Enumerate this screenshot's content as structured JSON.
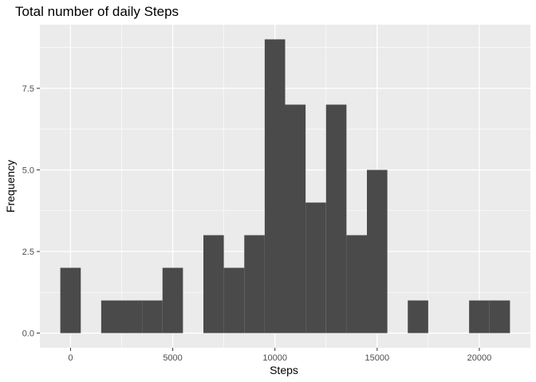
{
  "chart_data": {
    "type": "bar",
    "title": "Total number of daily Steps",
    "xlabel": "Steps",
    "ylabel": "Frequency",
    "bin_width": 1000,
    "x_ticks": [
      0,
      5000,
      10000,
      15000,
      20000
    ],
    "x_tick_labels": [
      "0",
      "5000",
      "10000",
      "15000",
      "20000"
    ],
    "y_ticks": [
      0,
      2.5,
      5,
      7.5
    ],
    "y_tick_labels": [
      "0.0",
      "2.5",
      "5.0",
      "7.5"
    ],
    "xlim": [
      -1500,
      22500
    ],
    "ylim": [
      -0.45,
      9.45
    ],
    "bins": [
      {
        "x_start": -500,
        "x_end": 500,
        "count": 2
      },
      {
        "x_start": 500,
        "x_end": 1500,
        "count": 0
      },
      {
        "x_start": 1500,
        "x_end": 2500,
        "count": 1
      },
      {
        "x_start": 2500,
        "x_end": 3500,
        "count": 1
      },
      {
        "x_start": 3500,
        "x_end": 4500,
        "count": 1
      },
      {
        "x_start": 4500,
        "x_end": 5500,
        "count": 2
      },
      {
        "x_start": 5500,
        "x_end": 6500,
        "count": 0
      },
      {
        "x_start": 6500,
        "x_end": 7500,
        "count": 3
      },
      {
        "x_start": 7500,
        "x_end": 8500,
        "count": 2
      },
      {
        "x_start": 8500,
        "x_end": 9500,
        "count": 3
      },
      {
        "x_start": 9500,
        "x_end": 10500,
        "count": 9
      },
      {
        "x_start": 10500,
        "x_end": 11500,
        "count": 7
      },
      {
        "x_start": 11500,
        "x_end": 12500,
        "count": 4
      },
      {
        "x_start": 12500,
        "x_end": 13500,
        "count": 7
      },
      {
        "x_start": 13500,
        "x_end": 14500,
        "count": 3
      },
      {
        "x_start": 14500,
        "x_end": 15500,
        "count": 5
      },
      {
        "x_start": 15500,
        "x_end": 16500,
        "count": 0
      },
      {
        "x_start": 16500,
        "x_end": 17500,
        "count": 1
      },
      {
        "x_start": 17500,
        "x_end": 18500,
        "count": 0
      },
      {
        "x_start": 18500,
        "x_end": 19500,
        "count": 0
      },
      {
        "x_start": 19500,
        "x_end": 20500,
        "count": 1
      },
      {
        "x_start": 20500,
        "x_end": 21500,
        "count": 1
      }
    ],
    "grid": true,
    "colors": {
      "panel_background": "#ebebeb",
      "grid_major": "#ffffff",
      "bar_fill": "#4a4a4a"
    }
  }
}
